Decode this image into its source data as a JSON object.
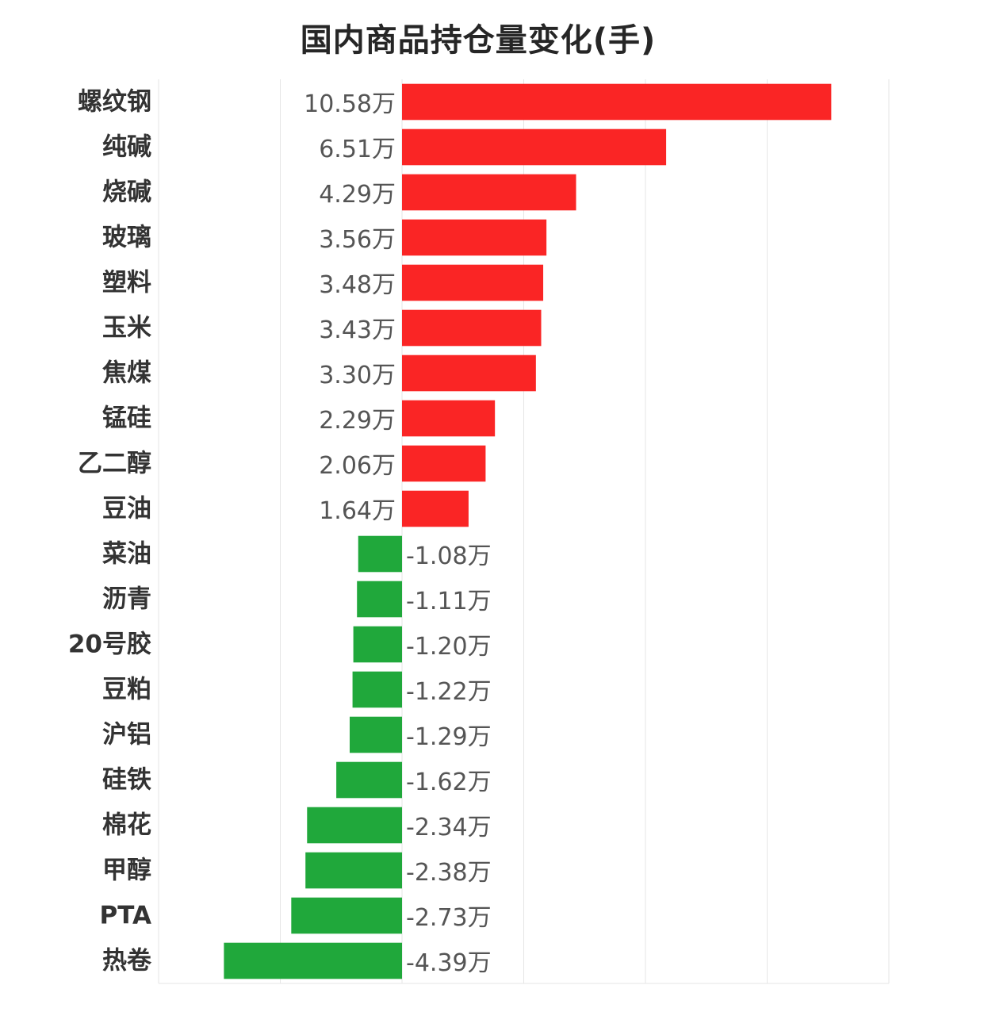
{
  "chart_data": {
    "type": "bar",
    "orientation": "horizontal",
    "title": "国内商品持仓量变化(手)",
    "xlabel": "",
    "ylabel": "",
    "unit_suffix": "万",
    "value_unit": "万手",
    "xlim": [
      -6,
      12
    ],
    "grid": true,
    "legend": "none",
    "colors": {
      "positive": "#fa2525",
      "negative": "#20a83b",
      "grid": "#e6e6e6"
    },
    "categories": [
      "螺纹钢",
      "纯碱",
      "烧碱",
      "玻璃",
      "塑料",
      "玉米",
      "焦煤",
      "锰硅",
      "乙二醇",
      "豆油",
      "菜油",
      "沥青",
      "20号胶",
      "豆粕",
      "沪铝",
      "硅铁",
      "棉花",
      "甲醇",
      "PTA",
      "热卷"
    ],
    "values": [
      10.58,
      6.51,
      4.29,
      3.56,
      3.48,
      3.43,
      3.3,
      2.29,
      2.06,
      1.64,
      -1.08,
      -1.11,
      -1.2,
      -1.22,
      -1.29,
      -1.62,
      -2.34,
      -2.38,
      -2.73,
      -4.39
    ],
    "value_labels": [
      "10.58万",
      "6.51万",
      "4.29万",
      "3.56万",
      "3.48万",
      "3.43万",
      "3.30万",
      "2.29万",
      "2.06万",
      "1.64万",
      "-1.08万",
      "-1.11万",
      "-1.20万",
      "-1.22万",
      "-1.29万",
      "-1.62万",
      "-2.34万",
      "-2.38万",
      "-2.73万",
      "-4.39万"
    ]
  }
}
